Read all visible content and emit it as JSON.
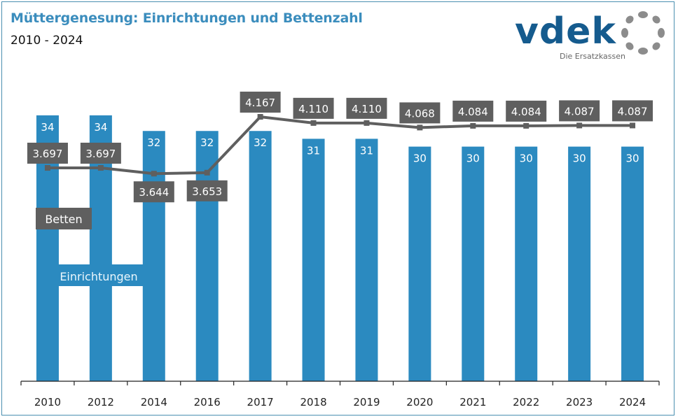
{
  "header": {
    "title": "Müttergenesung: Einrichtungen und Bettenzahl",
    "subtitle": "2010 - 2024"
  },
  "logo": {
    "wordmark": "vdek",
    "tagline": "Die Ersatzkassen",
    "icon": "ring-of-dots-icon"
  },
  "colors": {
    "bar": "#2b8ac0",
    "line": "#5f5f5f",
    "label_box": "#5f5f5f",
    "title": "#3b8dbd",
    "logo": "#155b8e"
  },
  "chart_data": {
    "type": "bar",
    "title": "Müttergenesung: Einrichtungen und Bettenzahl",
    "subtitle": "2010 - 2024",
    "xlabel": "",
    "ylabel": "",
    "categories": [
      "2010",
      "2012",
      "2014",
      "2016",
      "2017",
      "2018",
      "2019",
      "2020",
      "2021",
      "2022",
      "2023",
      "2024"
    ],
    "series": [
      {
        "name": "Einrichtungen",
        "type": "bar",
        "values": [
          34,
          34,
          32,
          32,
          32,
          31,
          31,
          30,
          30,
          30,
          30,
          30
        ],
        "labels": [
          "34",
          "34",
          "32",
          "32",
          "32",
          "31",
          "31",
          "30",
          "30",
          "30",
          "30",
          "30"
        ]
      },
      {
        "name": "Betten",
        "type": "line",
        "values": [
          3697,
          3697,
          3644,
          3653,
          4167,
          4110,
          4110,
          4068,
          4084,
          4084,
          4087,
          4087
        ],
        "labels": [
          "3.697",
          "3.697",
          "3.644",
          "3.653",
          "4.167",
          "4.110",
          "4.110",
          "4.068",
          "4.084",
          "4.084",
          "4.087",
          "4.087"
        ]
      }
    ],
    "legend": [
      "Betten",
      "Einrichtungen"
    ],
    "legend_placement": "inline-left",
    "grid": false
  }
}
